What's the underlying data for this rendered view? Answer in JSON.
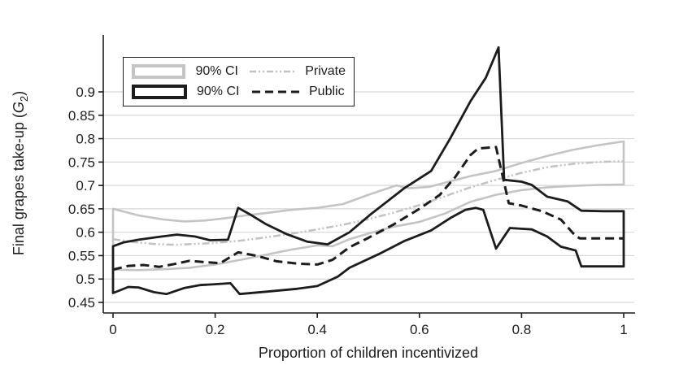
{
  "axes": {
    "y_label": {
      "prefix": "Final grapes take-up (",
      "variable": "G",
      "subscript": "2",
      "suffix": ")"
    },
    "x_label": "Proportion of children incentivized"
  },
  "legend": {
    "rows": [
      {
        "ci_label": "90% CI",
        "series_label": "Private",
        "swatch_color": "#c4c4c4",
        "line_color": "#c2c2c2",
        "line_style": "dash-dot-dot"
      },
      {
        "ci_label": "90% CI",
        "series_label": "Public",
        "swatch_color": "#1c1c1c",
        "line_color": "#1c1c1c",
        "line_style": "dashed"
      }
    ]
  },
  "chart_data": {
    "type": "line",
    "title": "",
    "xlabel": "Proportion of children incentivized",
    "ylabel": "Final grapes take-up (G2)",
    "xlim": [
      0,
      1
    ],
    "ylim": [
      0.45,
      0.9
    ],
    "grid": "horizontal",
    "legend_position": "top-left-inside",
    "x_tick_values": [
      0,
      0.2,
      0.4,
      0.6,
      0.8,
      1
    ],
    "x_tick_labels": [
      "0",
      "0.2",
      "0.4",
      "0.6",
      "0.8",
      "1"
    ],
    "y_tick_values": [
      0.45,
      0.5,
      0.55,
      0.6,
      0.65,
      0.7,
      0.75,
      0.8,
      0.85,
      0.9
    ],
    "y_tick_labels": [
      "0.45",
      "0.5",
      "0.55",
      "0.6",
      "0.65",
      "0.7",
      "0.75",
      "0.8",
      "0.85",
      "0.9"
    ],
    "style": {
      "axis_color": "#1c1c1c",
      "grid_color": "#d7d7d7",
      "text_color": "#1c1c1c"
    },
    "series": [
      {
        "name": "Private 90% CI band",
        "type": "band",
        "color": "#c4c4c4",
        "width": 2.6,
        "dash": "solid",
        "upper": [
          [
            0,
            0.65
          ],
          [
            0.05,
            0.636
          ],
          [
            0.1,
            0.627
          ],
          [
            0.14,
            0.623
          ],
          [
            0.18,
            0.625
          ],
          [
            0.22,
            0.63
          ],
          [
            0.26,
            0.636
          ],
          [
            0.3,
            0.641
          ],
          [
            0.35,
            0.648
          ],
          [
            0.4,
            0.652
          ],
          [
            0.45,
            0.66
          ],
          [
            0.5,
            0.68
          ],
          [
            0.555,
            0.7
          ],
          [
            0.58,
            0.694
          ],
          [
            0.62,
            0.697
          ],
          [
            0.65,
            0.706
          ],
          [
            0.7,
            0.72
          ],
          [
            0.75,
            0.731
          ],
          [
            0.8,
            0.748
          ],
          [
            0.85,
            0.763
          ],
          [
            0.9,
            0.776
          ],
          [
            0.95,
            0.786
          ],
          [
            1.0,
            0.794
          ]
        ],
        "lower": [
          [
            0,
            0.52
          ],
          [
            0.05,
            0.519
          ],
          [
            0.1,
            0.521
          ],
          [
            0.15,
            0.524
          ],
          [
            0.2,
            0.531
          ],
          [
            0.25,
            0.541
          ],
          [
            0.3,
            0.552
          ],
          [
            0.35,
            0.563
          ],
          [
            0.4,
            0.572
          ],
          [
            0.43,
            0.57
          ],
          [
            0.463,
            0.585
          ],
          [
            0.5,
            0.597
          ],
          [
            0.55,
            0.612
          ],
          [
            0.6,
            0.622
          ],
          [
            0.65,
            0.64
          ],
          [
            0.7,
            0.665
          ],
          [
            0.75,
            0.68
          ],
          [
            0.8,
            0.69
          ],
          [
            0.85,
            0.696
          ],
          [
            0.9,
            0.699
          ],
          [
            0.95,
            0.701
          ],
          [
            1.0,
            0.702
          ]
        ]
      },
      {
        "name": "Private",
        "type": "line",
        "color": "#c2c2c2",
        "width": 2.5,
        "dash": "dash-dot-dot",
        "points": [
          [
            0,
            0.585
          ],
          [
            0.04,
            0.579
          ],
          [
            0.08,
            0.575
          ],
          [
            0.12,
            0.573
          ],
          [
            0.16,
            0.575
          ],
          [
            0.2,
            0.577
          ],
          [
            0.25,
            0.582
          ],
          [
            0.3,
            0.589
          ],
          [
            0.35,
            0.597
          ],
          [
            0.4,
            0.606
          ],
          [
            0.45,
            0.616
          ],
          [
            0.5,
            0.628
          ],
          [
            0.55,
            0.642
          ],
          [
            0.6,
            0.658
          ],
          [
            0.65,
            0.677
          ],
          [
            0.7,
            0.696
          ],
          [
            0.75,
            0.712
          ],
          [
            0.8,
            0.727
          ],
          [
            0.85,
            0.739
          ],
          [
            0.9,
            0.746
          ],
          [
            0.95,
            0.75
          ],
          [
            1.0,
            0.752
          ]
        ]
      },
      {
        "name": "Public 90% CI band",
        "type": "band",
        "color": "#1c1c1c",
        "width": 2.8,
        "dash": "solid",
        "upper": [
          [
            0,
            0.57
          ],
          [
            0.02,
            0.578
          ],
          [
            0.05,
            0.584
          ],
          [
            0.09,
            0.59
          ],
          [
            0.125,
            0.595
          ],
          [
            0.16,
            0.591
          ],
          [
            0.19,
            0.583
          ],
          [
            0.225,
            0.584
          ],
          [
            0.245,
            0.652
          ],
          [
            0.27,
            0.637
          ],
          [
            0.3,
            0.617
          ],
          [
            0.34,
            0.596
          ],
          [
            0.38,
            0.58
          ],
          [
            0.42,
            0.574
          ],
          [
            0.463,
            0.6
          ],
          [
            0.503,
            0.637
          ],
          [
            0.57,
            0.694
          ],
          [
            0.623,
            0.731
          ],
          [
            0.66,
            0.8
          ],
          [
            0.7,
            0.88
          ],
          [
            0.73,
            0.93
          ],
          [
            0.755,
            0.995
          ],
          [
            0.766,
            0.712
          ],
          [
            0.8,
            0.708
          ],
          [
            0.82,
            0.701
          ],
          [
            0.85,
            0.676
          ],
          [
            0.89,
            0.666
          ],
          [
            0.917,
            0.646
          ],
          [
            0.96,
            0.645
          ],
          [
            1.0,
            0.645
          ]
        ],
        "lower": [
          [
            0,
            0.47
          ],
          [
            0.03,
            0.483
          ],
          [
            0.05,
            0.482
          ],
          [
            0.08,
            0.472
          ],
          [
            0.105,
            0.468
          ],
          [
            0.14,
            0.481
          ],
          [
            0.17,
            0.487
          ],
          [
            0.2,
            0.489
          ],
          [
            0.23,
            0.491
          ],
          [
            0.248,
            0.468
          ],
          [
            0.3,
            0.473
          ],
          [
            0.36,
            0.479
          ],
          [
            0.4,
            0.485
          ],
          [
            0.44,
            0.505
          ],
          [
            0.463,
            0.524
          ],
          [
            0.52,
            0.553
          ],
          [
            0.57,
            0.581
          ],
          [
            0.623,
            0.604
          ],
          [
            0.66,
            0.63
          ],
          [
            0.69,
            0.648
          ],
          [
            0.71,
            0.652
          ],
          [
            0.725,
            0.648
          ],
          [
            0.75,
            0.565
          ],
          [
            0.777,
            0.609
          ],
          [
            0.82,
            0.606
          ],
          [
            0.85,
            0.591
          ],
          [
            0.877,
            0.569
          ],
          [
            0.906,
            0.561
          ],
          [
            0.917,
            0.527
          ],
          [
            0.96,
            0.527
          ],
          [
            1.0,
            0.527
          ]
        ]
      },
      {
        "name": "Public",
        "type": "line",
        "color": "#1c1c1c",
        "width": 3,
        "dash": "dashed",
        "points": [
          [
            0,
            0.52
          ],
          [
            0.03,
            0.528
          ],
          [
            0.06,
            0.53
          ],
          [
            0.09,
            0.526
          ],
          [
            0.12,
            0.532
          ],
          [
            0.15,
            0.539
          ],
          [
            0.18,
            0.536
          ],
          [
            0.21,
            0.534
          ],
          [
            0.245,
            0.557
          ],
          [
            0.28,
            0.55
          ],
          [
            0.32,
            0.538
          ],
          [
            0.36,
            0.533
          ],
          [
            0.4,
            0.531
          ],
          [
            0.43,
            0.541
          ],
          [
            0.463,
            0.568
          ],
          [
            0.5,
            0.588
          ],
          [
            0.55,
            0.617
          ],
          [
            0.6,
            0.65
          ],
          [
            0.64,
            0.68
          ],
          [
            0.67,
            0.718
          ],
          [
            0.7,
            0.765
          ],
          [
            0.715,
            0.779
          ],
          [
            0.75,
            0.782
          ],
          [
            0.765,
            0.71
          ],
          [
            0.775,
            0.662
          ],
          [
            0.8,
            0.657
          ],
          [
            0.84,
            0.645
          ],
          [
            0.877,
            0.627
          ],
          [
            0.905,
            0.593
          ],
          [
            0.914,
            0.587
          ],
          [
            0.95,
            0.587
          ],
          [
            1.0,
            0.587
          ]
        ]
      }
    ]
  }
}
